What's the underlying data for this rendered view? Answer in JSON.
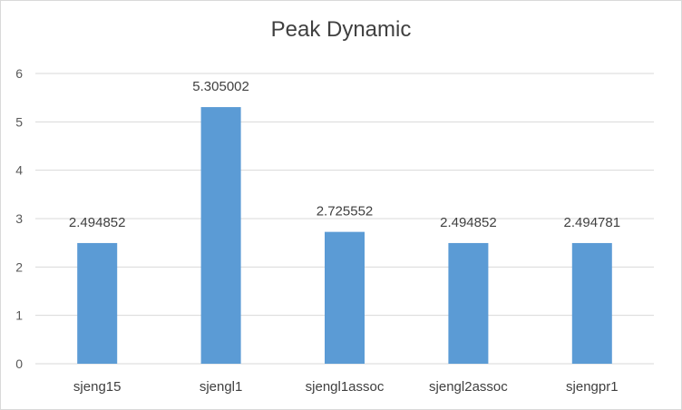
{
  "chart_data": {
    "type": "bar",
    "title": "Peak Dynamic",
    "xlabel": "",
    "ylabel": "",
    "categories": [
      "sjeng15",
      "sjengl1",
      "sjengl1assoc",
      "sjengl2assoc",
      "sjengpr1"
    ],
    "values": [
      2.494852,
      5.305002,
      2.725552,
      2.494852,
      2.494781
    ],
    "data_labels": [
      "2.494852",
      "5.305002",
      "2.725552",
      "2.494852",
      "2.494781"
    ],
    "ylim": [
      0,
      6
    ],
    "yticks": [
      0,
      1,
      2,
      3,
      4,
      5,
      6
    ],
    "grid": true,
    "legend": "none",
    "bar_color": "#5b9bd5",
    "grid_color": "#d9d9d9"
  }
}
